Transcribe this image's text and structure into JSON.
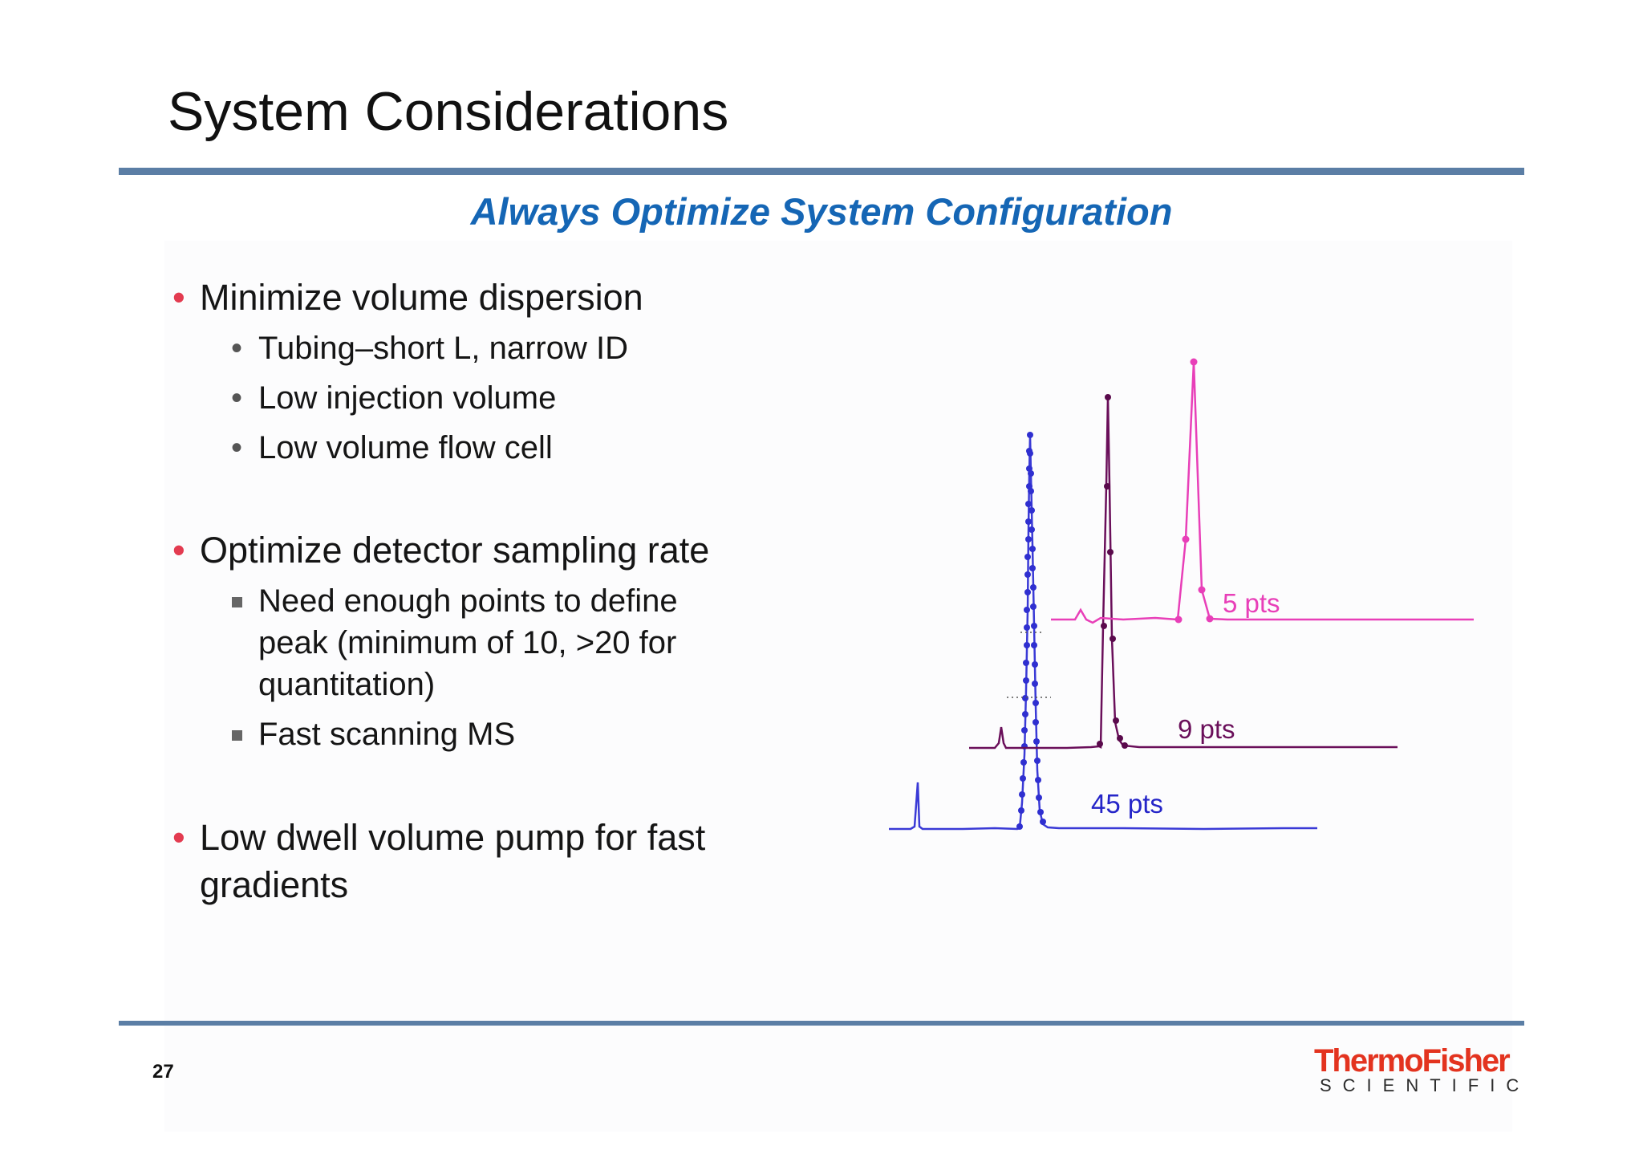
{
  "slide": {
    "title": "System Considerations",
    "subtitle": "Always Optimize System Configuration",
    "page_number": "27"
  },
  "bullets": [
    {
      "text": "Minimize volume dispersion",
      "children": [
        {
          "text": "Tubing–short L, narrow ID"
        },
        {
          "text": "Low injection volume"
        },
        {
          "text": "Low volume flow cell"
        }
      ]
    },
    {
      "text": "Optimize detector sampling rate",
      "children": [
        {
          "lines": [
            "Need enough points to define",
            "peak (minimum of 10, >20 for",
            "quantitation)"
          ]
        },
        {
          "text": "Fast scanning MS"
        }
      ]
    },
    {
      "lines": [
        "Low dwell volume pump for fast",
        "gradients"
      ]
    }
  ],
  "chromatograms": [
    {
      "label": "5 pts",
      "color": "#e83fb8"
    },
    {
      "label": "9 pts",
      "color": "#6a0f5a"
    },
    {
      "label": "45 pts",
      "color": "#2525c8"
    }
  ],
  "logo": {
    "line1": "ThermoFisher",
    "line2": "SCIENTIFIC"
  },
  "colors": {
    "rule": "#5b7ea5",
    "subtitle": "#1566b5",
    "bullet_dot": "#e33b50",
    "logo_red": "#e3331f"
  }
}
